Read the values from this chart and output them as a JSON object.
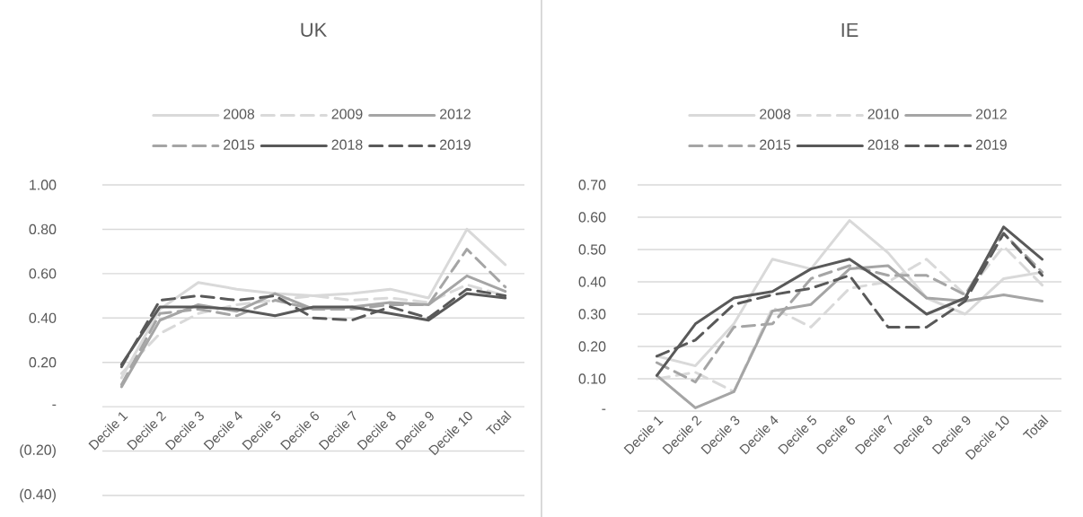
{
  "chart_data": [
    {
      "type": "line",
      "title": "UK",
      "categories": [
        "Decile 1",
        "Decile 2",
        "Decile 3",
        "Decile 4",
        "Decile 5",
        "Decile 6",
        "Decile 7",
        "Decile 8",
        "Decile 9",
        "Decile 10",
        "Total"
      ],
      "series": [
        {
          "name": "2008",
          "color": "#d9d9d9",
          "line_style": "solid",
          "values": [
            0.13,
            0.44,
            0.56,
            0.53,
            0.51,
            0.5,
            0.51,
            0.53,
            0.49,
            0.8,
            0.64
          ]
        },
        {
          "name": "2009",
          "color": "#d9d9d9",
          "line_style": "dashed",
          "values": [
            0.15,
            0.33,
            0.42,
            0.46,
            0.48,
            0.5,
            0.48,
            0.49,
            0.47,
            0.55,
            0.5
          ]
        },
        {
          "name": "2012",
          "color": "#a5a5a5",
          "line_style": "solid",
          "values": [
            0.09,
            0.39,
            0.46,
            0.43,
            0.51,
            0.44,
            0.45,
            0.47,
            0.46,
            0.59,
            0.52
          ]
        },
        {
          "name": "2015",
          "color": "#a5a5a5",
          "line_style": "dashed",
          "values": [
            0.1,
            0.42,
            0.44,
            0.41,
            0.48,
            0.44,
            0.44,
            0.46,
            0.46,
            0.71,
            0.54
          ]
        },
        {
          "name": "2018",
          "color": "#595959",
          "line_style": "solid",
          "values": [
            0.19,
            0.45,
            0.45,
            0.44,
            0.41,
            0.45,
            0.45,
            0.42,
            0.39,
            0.51,
            0.49
          ]
        },
        {
          "name": "2019",
          "color": "#595959",
          "line_style": "dashed",
          "values": [
            0.18,
            0.48,
            0.5,
            0.48,
            0.5,
            0.4,
            0.39,
            0.45,
            0.4,
            0.53,
            0.5
          ]
        }
      ],
      "ylim": [
        -0.4,
        1.0
      ],
      "yticks": [
        {
          "value": -0.4,
          "label": "(0.40)"
        },
        {
          "value": -0.2,
          "label": "(0.20)"
        },
        {
          "value": 0,
          "label": "-"
        },
        {
          "value": 0.2,
          "label": "0.20"
        },
        {
          "value": 0.4,
          "label": "0.40"
        },
        {
          "value": 0.6,
          "label": "0.60"
        },
        {
          "value": 0.8,
          "label": "0.80"
        },
        {
          "value": 1.0,
          "label": "1.00"
        }
      ],
      "grid": "y",
      "legend": "top"
    },
    {
      "type": "line",
      "title": "IE",
      "categories": [
        "Decile 1",
        "Decile 2",
        "Decile 3",
        "Decile 4",
        "Decile 5",
        "Decile 6",
        "Decile 7",
        "Decile 8",
        "Decile 9",
        "Decile 10",
        "Total"
      ],
      "series": [
        {
          "name": "2008",
          "color": "#d9d9d9",
          "line_style": "solid",
          "values": [
            0.17,
            0.14,
            0.27,
            0.47,
            0.44,
            0.59,
            0.49,
            0.35,
            0.3,
            0.41,
            0.43
          ]
        },
        {
          "name": "2010",
          "color": "#d9d9d9",
          "line_style": "dashed",
          "values": [
            0.1,
            0.12,
            0.06,
            0.32,
            0.26,
            0.38,
            0.4,
            0.47,
            0.36,
            0.51,
            0.39
          ]
        },
        {
          "name": "2012",
          "color": "#a5a5a5",
          "line_style": "solid",
          "values": [
            0.11,
            0.01,
            0.06,
            0.31,
            0.33,
            0.44,
            0.45,
            0.35,
            0.34,
            0.36,
            0.34
          ]
        },
        {
          "name": "2015",
          "color": "#a5a5a5",
          "line_style": "dashed",
          "values": [
            0.15,
            0.09,
            0.26,
            0.27,
            0.41,
            0.45,
            0.42,
            0.42,
            0.36,
            0.55,
            0.43
          ]
        },
        {
          "name": "2018",
          "color": "#595959",
          "line_style": "solid",
          "values": [
            0.11,
            0.27,
            0.35,
            0.37,
            0.44,
            0.47,
            0.39,
            0.3,
            0.35,
            0.57,
            0.47
          ]
        },
        {
          "name": "2019",
          "color": "#595959",
          "line_style": "dashed",
          "values": [
            0.17,
            0.22,
            0.33,
            0.36,
            0.38,
            0.42,
            0.26,
            0.26,
            0.34,
            0.55,
            0.42
          ]
        }
      ],
      "ylim": [
        0,
        0.7
      ],
      "yticks": [
        {
          "value": 0,
          "label": "-"
        },
        {
          "value": 0.1,
          "label": "0.10"
        },
        {
          "value": 0.2,
          "label": "0.20"
        },
        {
          "value": 0.3,
          "label": "0.30"
        },
        {
          "value": 0.4,
          "label": "0.40"
        },
        {
          "value": 0.5,
          "label": "0.50"
        },
        {
          "value": 0.6,
          "label": "0.60"
        },
        {
          "value": 0.7,
          "label": "0.70"
        }
      ],
      "grid": "y",
      "legend": "top"
    }
  ]
}
